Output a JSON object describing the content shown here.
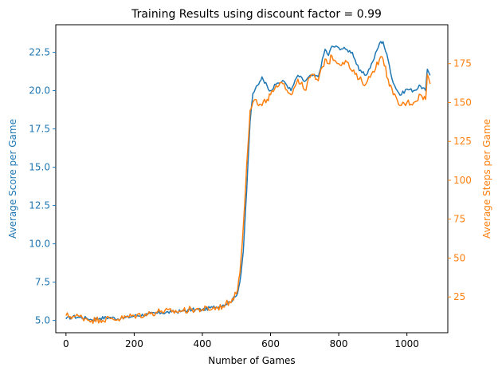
{
  "chart_data": {
    "type": "line",
    "title": "Training Results using discount factor = 0.99",
    "xlabel": "Number of Games",
    "xlim": [
      -30,
      1120
    ],
    "x_ticks": [
      0,
      200,
      400,
      600,
      800,
      1000
    ],
    "grid": false,
    "legend": "none",
    "left_axis": {
      "label": "Average Score per Game",
      "color": "#1f77b4",
      "ylim": [
        4.2,
        24.3
      ],
      "ticks": [
        5.0,
        7.5,
        10.0,
        12.5,
        15.0,
        17.5,
        20.0,
        22.5
      ],
      "tick_labels": [
        "5.0",
        "7.5",
        "10.0",
        "12.5",
        "15.0",
        "17.5",
        "20.0",
        "22.5"
      ]
    },
    "right_axis": {
      "label": "Average Steps per Game",
      "color": "#ff7f0e",
      "ylim": [
        2,
        200
      ],
      "ticks": [
        25,
        50,
        75,
        100,
        125,
        150,
        175
      ],
      "tick_labels": [
        "25",
        "50",
        "75",
        "100",
        "125",
        "150",
        "175"
      ]
    },
    "series": [
      {
        "axis": "left",
        "color": "#1f77b4",
        "x": [
          0,
          20,
          40,
          60,
          75,
          100,
          130,
          160,
          200,
          240,
          280,
          310,
          340,
          370,
          400,
          430,
          460,
          480,
          500,
          510,
          520,
          530,
          540,
          548,
          555,
          565,
          575,
          590,
          600,
          620,
          640,
          660,
          680,
          700,
          720,
          740,
          760,
          770,
          780,
          800,
          820,
          840,
          860,
          880,
          900,
          920,
          930,
          945,
          960,
          980,
          1000,
          1020,
          1040,
          1055,
          1060,
          1068
        ],
        "y": [
          5.1,
          5.25,
          5.2,
          5.15,
          5.05,
          5.15,
          5.2,
          5.1,
          5.3,
          5.4,
          5.5,
          5.55,
          5.6,
          5.7,
          5.7,
          5.85,
          6.0,
          6.2,
          6.6,
          7.5,
          9.5,
          13.5,
          18.0,
          19.8,
          20.1,
          20.4,
          20.9,
          20.3,
          20.0,
          20.5,
          20.6,
          20.0,
          21.0,
          20.6,
          21.0,
          20.9,
          22.7,
          22.3,
          22.9,
          22.8,
          22.7,
          22.5,
          21.3,
          21.0,
          21.9,
          23.1,
          23.2,
          22.0,
          20.5,
          19.7,
          20.1,
          20.0,
          20.3,
          20.0,
          21.4,
          21.0
        ]
      },
      {
        "axis": "right",
        "color": "#ff7f0e",
        "x": [
          0,
          20,
          40,
          60,
          75,
          100,
          130,
          160,
          200,
          240,
          280,
          310,
          340,
          370,
          400,
          430,
          460,
          480,
          500,
          510,
          520,
          530,
          540,
          548,
          555,
          565,
          575,
          590,
          600,
          620,
          640,
          660,
          680,
          700,
          720,
          740,
          760,
          770,
          780,
          800,
          820,
          840,
          860,
          880,
          900,
          920,
          930,
          945,
          960,
          980,
          1000,
          1020,
          1040,
          1055,
          1060,
          1068
        ],
        "y": [
          13,
          12.5,
          12.5,
          11,
          10,
          10.5,
          11,
          11,
          13,
          14,
          16,
          15.5,
          16,
          17,
          17,
          17.5,
          19,
          22,
          27,
          40,
          70,
          110,
          145,
          150,
          152,
          148,
          148,
          152,
          155,
          160,
          162,
          155,
          165,
          158,
          168,
          164,
          178,
          175,
          180,
          175,
          177,
          170,
          165,
          162,
          170,
          178,
          178,
          165,
          155,
          148,
          150,
          150,
          155,
          152,
          168,
          162
        ]
      }
    ]
  }
}
